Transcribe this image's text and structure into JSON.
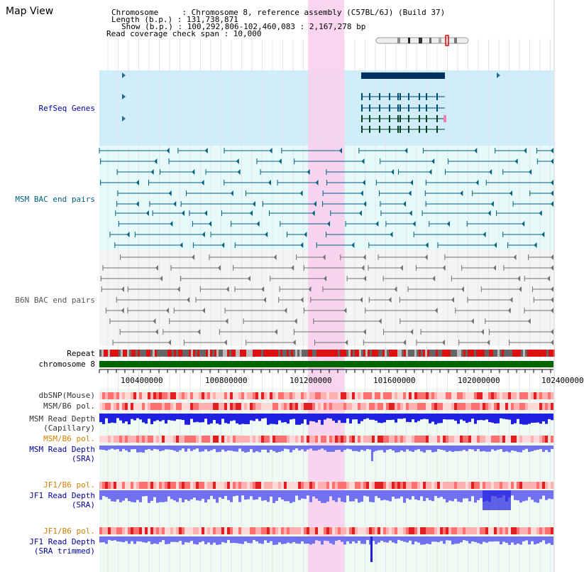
{
  "page": {
    "title": "Map View"
  },
  "header": {
    "chromosome": "Chromosome     : Chromosome 8, reference assembly (C57BL/6J) (Build 37)",
    "length": "Length (b.p.) : 131,738,871",
    "show": "Show (b.p.) : 100,292,806-102,460,083 : 2,167,278 bp",
    "coverage": "Read coverage check span : 10,000"
  },
  "tracks": {
    "refseq": "RefSeq Genes",
    "msm_bac": "MSM BAC end pairs",
    "b6n_bac": "B6N BAC end pairs",
    "repeat": "Repeat",
    "chromosome": "chromosome 8",
    "dbsnp": "dbSNP(Mouse)",
    "msm_b6_pol_1": "MSM/B6 pol.",
    "msm_depth_cap_1": "MSM Read Depth",
    "msm_depth_cap_2": "(Capillary)",
    "msm_b6_pol_2": "MSM/B6 pol.",
    "msm_depth_sra_1": "MSM Read Depth",
    "msm_depth_sra_2": "(SRA)",
    "jf1_b6_pol_1": "JF1/B6 pol.",
    "jf1_depth_sra_1": "JF1 Read Depth",
    "jf1_depth_sra_2": "(SRA)",
    "jf1_b6_pol_2": "JF1/B6 pol.",
    "jf1_depth_trim_1": "JF1 Read Depth",
    "jf1_depth_trim_2": "(SRA trimmed)"
  },
  "axis": {
    "ticks": [
      "100400000",
      "100800000",
      "101200000",
      "101600000",
      "102000000",
      "102400000"
    ]
  },
  "colors": {
    "refseq_bg": "#cfeefa",
    "msm_bg": "#e6fafa",
    "highlight": "#f8d0ee",
    "gene_dark": "#003060",
    "msm_line": "#006080",
    "b6n_line": "#707070",
    "label_blue": "#0000a0",
    "label_orange": "#d08000",
    "chrom_green": "#006600",
    "depth_blue": "#2020e0",
    "depth_light": "#7070f0"
  }
}
